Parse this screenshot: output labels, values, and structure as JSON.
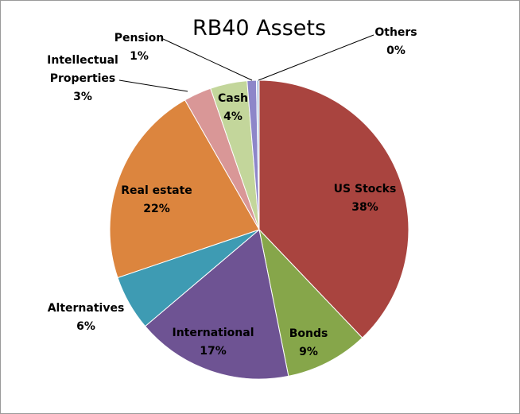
{
  "chart_data": {
    "type": "pie",
    "title": "RB40 Assets",
    "slices": [
      {
        "name": "US Stocks",
        "value": 38,
        "label": "38%",
        "color": "#a9443f"
      },
      {
        "name": "Bonds",
        "value": 9,
        "label": "9%",
        "color": "#86a64a"
      },
      {
        "name": "International",
        "value": 17,
        "label": "17%",
        "color": "#6e5393"
      },
      {
        "name": "Alternatives",
        "value": 6,
        "label": "6%",
        "color": "#3e9bb3"
      },
      {
        "name": "Real estate",
        "value": 22,
        "label": "22%",
        "color": "#dc853e"
      },
      {
        "name": "Intellectual Properties",
        "value": 3,
        "label": "3%",
        "color": "#d99797"
      },
      {
        "name": "Cash",
        "value": 4,
        "label": "4%",
        "color": "#c3d69b"
      },
      {
        "name": "Pension",
        "value": 1,
        "label": "1%",
        "color": "#8d86c9"
      },
      {
        "name": "Others",
        "value": 0.3,
        "label": "0%",
        "color": "#b8cce4"
      }
    ],
    "start_angle": "12 o'clock",
    "direction": "clockwise",
    "legend": "none"
  }
}
